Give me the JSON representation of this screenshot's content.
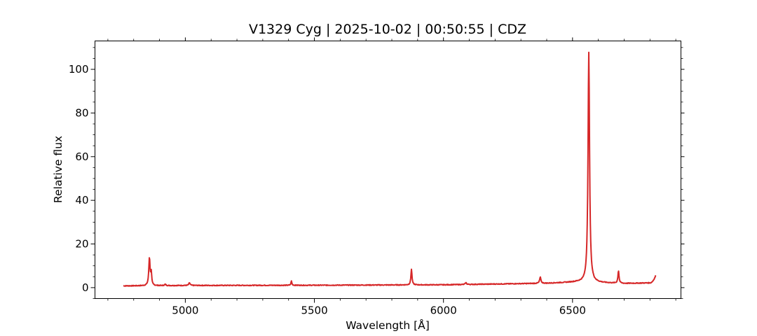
{
  "chart_data": {
    "type": "line",
    "title": "V1329 Cyg | 2025-10-02 | 00:50:55 | CDZ",
    "xlabel": "Wavelength [Å]",
    "ylabel": "Relative flux",
    "xlim": [
      4650,
      6920
    ],
    "ylim": [
      -5,
      113
    ],
    "x_ticks": [
      5000,
      5500,
      6000,
      6500
    ],
    "x_tick_labels": [
      "5000",
      "5500",
      "6000",
      "6500"
    ],
    "y_ticks": [
      0,
      20,
      40,
      60,
      80,
      100
    ],
    "y_tick_labels": [
      "0",
      "20",
      "40",
      "60",
      "80",
      "100"
    ],
    "grid": false,
    "line_color": "#d62728",
    "series": [
      {
        "continuum": [
          [
            4760,
            0.8
          ],
          [
            5000,
            1.0
          ],
          [
            5500,
            1.1
          ],
          [
            6000,
            1.3
          ],
          [
            6400,
            2.0
          ],
          [
            6520,
            2.6
          ],
          [
            6700,
            1.9
          ],
          [
            6810,
            2.2
          ]
        ],
        "emission_lines": [
          {
            "center": 4861,
            "peak": 12.8,
            "width": 3
          },
          {
            "center": 4868,
            "peak": 5.5,
            "width": 2
          },
          {
            "center": 4922,
            "peak": 0.6,
            "width": 3
          },
          {
            "center": 5016,
            "peak": 1.2,
            "width": 3
          },
          {
            "center": 5411,
            "peak": 2.0,
            "width": 2
          },
          {
            "center": 5876,
            "peak": 7.2,
            "width": 2.5
          },
          {
            "center": 6087,
            "peak": 0.8,
            "width": 3
          },
          {
            "center": 6375,
            "peak": 2.8,
            "width": 3
          },
          {
            "center": 6563,
            "peak": 105.5,
            "width": 3.5
          },
          {
            "center": 6678,
            "peak": 5.8,
            "width": 2.5
          }
        ],
        "end_rise": {
          "x": [
            6800,
            6823
          ],
          "y": [
            2.2,
            5.8
          ]
        },
        "noise_amplitude": 0.35
      }
    ]
  }
}
